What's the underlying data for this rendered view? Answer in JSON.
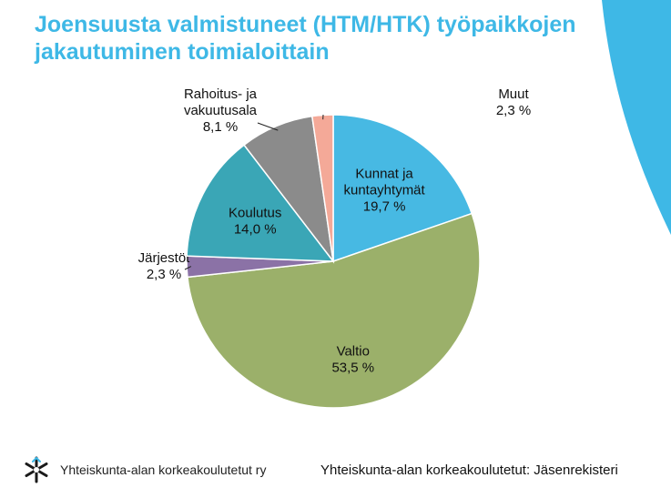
{
  "title": {
    "line1": "Joensuusta valmistuneet (HTM/HTK) työpaikkojen",
    "line2": "jakautuminen toimialoittain"
  },
  "colors": {
    "title": "#3eb8e6",
    "decoration": "#3eb8e6"
  },
  "chart_data": {
    "type": "pie",
    "start_angle_deg": 0,
    "direction": "clockwise",
    "slices": [
      {
        "label_lines": [
          "Kunnat ja",
          "kuntayhtymät"
        ],
        "value_label": "19,7 %",
        "value": 19.7,
        "color": "#47b9e3",
        "label_inside": true
      },
      {
        "label_lines": [
          "Valtio"
        ],
        "value_label": "53,5 %",
        "value": 53.5,
        "color": "#9bb06a",
        "label_inside": true
      },
      {
        "label_lines": [
          "Järjestöt"
        ],
        "value_label": "2,3 %",
        "value": 2.3,
        "color": "#8b72a6",
        "label_inside": false
      },
      {
        "label_lines": [
          "Koulutus"
        ],
        "value_label": "14,0 %",
        "value": 14.0,
        "color": "#3aa6b6",
        "label_inside": true
      },
      {
        "label_lines": [
          "Rahoitus- ja",
          "vakuutusala"
        ],
        "value_label": "8,1 %",
        "value": 8.1,
        "color": "#8b8b8b",
        "label_inside": false
      },
      {
        "label_lines": [
          "Muut"
        ],
        "value_label": "2,3 %",
        "value": 2.3,
        "color": "#f4a998",
        "label_inside": false
      }
    ]
  },
  "footer": {
    "logo_text": "Yhteiskunta-alan korkeakoulutetut ry",
    "source": "Yhteiskunta-alan korkeakoulutetut: Jäsenrekisteri"
  }
}
